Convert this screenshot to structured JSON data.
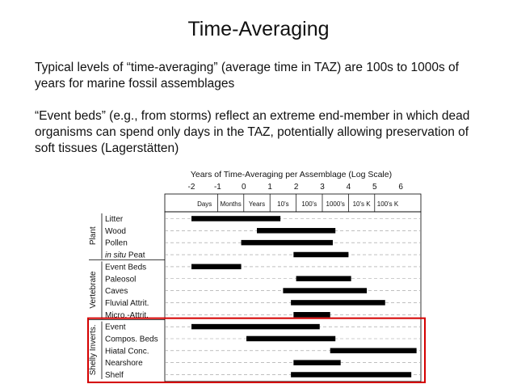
{
  "slide": {
    "title": "Time-Averaging",
    "paragraphs": [
      "Typical levels of “time-averaging” (average time in TAZ) are 100s to 1000s of years for marine fossil assemblages",
      "“Event beds” (e.g., from storms) reflect an extreme end-member in which dead organisms can spend only days in the TAZ, potentially allowing preservation of soft tissues (Lagerstätten)"
    ]
  },
  "chart_data": {
    "type": "range-bar",
    "title": "Years of Time-Averaging per Assemblage (Log Scale)",
    "xlim": [
      -2.2,
      6.8
    ],
    "x_ticks": [
      -2,
      -1,
      0,
      1,
      2,
      3,
      4,
      5,
      6
    ],
    "x_ticks_labels": [
      "-2",
      "-1",
      "0",
      "1",
      "2",
      "3",
      "4",
      "5",
      "6"
    ],
    "time_bins": [
      "Days",
      "Months",
      "Years",
      "10's",
      "100's",
      "1000's",
      "10's K",
      "100's K"
    ],
    "groups": [
      {
        "name": "Plant",
        "rows": [
          0,
          1,
          2,
          3
        ]
      },
      {
        "name": "Vertebrate",
        "rows": [
          4,
          5,
          6,
          7,
          8
        ]
      },
      {
        "name": "Shelly Inverts.",
        "rows": [
          9,
          10,
          11,
          12,
          13
        ]
      }
    ],
    "rows": [
      {
        "label": "Litter",
        "range": [
          -2.0,
          1.4
        ]
      },
      {
        "label": "Wood",
        "range": [
          0.5,
          3.5
        ]
      },
      {
        "label": "Pollen",
        "range": [
          -0.1,
          3.4
        ]
      },
      {
        "label": "in situ Peat",
        "range": [
          1.9,
          4.0
        ],
        "italic_part": "in situ"
      },
      {
        "label": "Event Beds",
        "range": [
          -2.0,
          -0.1
        ]
      },
      {
        "label": "Paleosol",
        "range": [
          2.0,
          4.1
        ]
      },
      {
        "label": "Caves",
        "range": [
          1.5,
          4.7
        ]
      },
      {
        "label": "Fluvial Attrit.",
        "range": [
          1.8,
          5.4
        ]
      },
      {
        "label": "Micro.-Attrit.",
        "range": [
          1.9,
          3.3
        ]
      },
      {
        "label": "Event",
        "range": [
          -2.0,
          2.9
        ]
      },
      {
        "label": "Compos. Beds",
        "range": [
          0.1,
          3.5
        ]
      },
      {
        "label": "Hiatal Conc.",
        "range": [
          3.3,
          6.6
        ]
      },
      {
        "label": "Nearshore",
        "range": [
          1.9,
          3.7
        ]
      },
      {
        "label": "Shelf",
        "range": [
          1.8,
          6.4
        ]
      }
    ],
    "highlight_group": "Shelly Inverts.",
    "highlight_color": "#d40000",
    "bar_color": "#000000"
  }
}
